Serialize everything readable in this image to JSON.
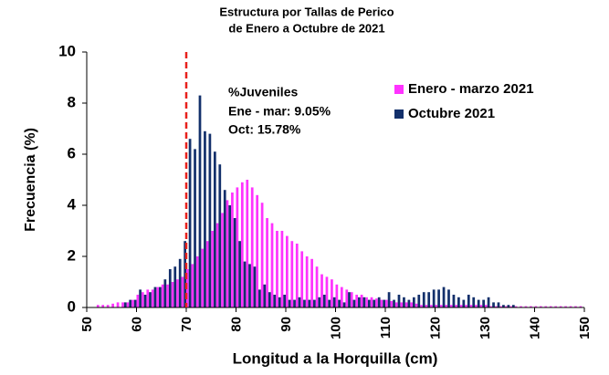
{
  "chart_data": {
    "type": "bar",
    "title_lines": [
      "Estructura por Tallas de Perico",
      "de Enero a Octubre de 2021"
    ],
    "x_label": "Longitud a la Horquilla (cm)",
    "y_label": "Frecuencia (%)",
    "annotations": [
      "%Juveniles",
      "Ene - mar: 9.05%",
      "Oct: 15.78%"
    ],
    "reference_line": {
      "value": 70,
      "color": "#e8211c"
    },
    "legend": "upper right",
    "x": [
      50,
      51,
      52,
      53,
      54,
      55,
      56,
      57,
      58,
      59,
      60,
      61,
      62,
      63,
      64,
      65,
      66,
      67,
      68,
      69,
      70,
      71,
      72,
      73,
      74,
      75,
      76,
      77,
      78,
      79,
      80,
      81,
      82,
      83,
      84,
      85,
      86,
      87,
      88,
      89,
      90,
      91,
      92,
      93,
      94,
      95,
      96,
      97,
      98,
      99,
      100,
      101,
      102,
      103,
      104,
      105,
      106,
      107,
      108,
      109,
      110,
      111,
      112,
      113,
      114,
      115,
      116,
      117,
      118,
      119,
      120,
      121,
      122,
      123,
      124,
      125,
      126,
      127,
      128,
      129,
      130,
      131,
      132,
      133,
      134,
      135,
      136,
      137,
      138,
      139,
      140,
      141,
      142,
      143,
      144,
      145,
      146,
      147,
      148,
      149
    ],
    "series": [
      {
        "name": "Enero - marzo 2021",
        "color": "#ff33ff",
        "values": [
          0,
          0,
          0.1,
          0.1,
          0.1,
          0.15,
          0.2,
          0.2,
          0.2,
          0.3,
          0.5,
          0.6,
          0.7,
          0.7,
          0.8,
          0.9,
          0.9,
          1.0,
          1.1,
          1.2,
          1.5,
          1.7,
          2.0,
          2.3,
          2.6,
          3.0,
          3.3,
          3.7,
          4.2,
          4.5,
          4.7,
          4.9,
          5.0,
          4.7,
          4.4,
          4.1,
          3.5,
          3.3,
          3.0,
          3.0,
          2.8,
          2.6,
          2.5,
          2.2,
          2.0,
          1.9,
          1.6,
          1.3,
          1.2,
          1.1,
          0.9,
          0.8,
          0.7,
          0.6,
          0.5,
          0.5,
          0.4,
          0.4,
          0.35,
          0.3,
          0.3,
          0.25,
          0.2,
          0.2,
          0.2,
          0.2,
          0.15,
          0.1,
          0.1,
          0.1,
          0.1,
          0.1,
          0.1,
          0.1,
          0.1,
          0.1,
          0.1,
          0.1,
          0.1,
          0.1,
          0.1,
          0.05,
          0.05,
          0.05,
          0.05,
          0.05,
          0.05,
          0.05,
          0.05,
          0.05,
          0.05,
          0.05,
          0.05,
          0.05,
          0.05,
          0.05,
          0.05,
          0.05,
          0.05,
          0.05
        ]
      },
      {
        "name": "Octubre 2021",
        "color": "#13306b",
        "values": [
          0,
          0,
          0,
          0,
          0,
          0,
          0,
          0.2,
          0.3,
          0.3,
          0.7,
          0.5,
          0.6,
          0.8,
          0.8,
          1.1,
          1.5,
          1.6,
          1.9,
          2.6,
          6.6,
          6.2,
          8.3,
          6.9,
          6.8,
          6.1,
          5.6,
          4.6,
          4.0,
          3.5,
          2.6,
          1.8,
          1.7,
          1.6,
          0.7,
          0.9,
          0.6,
          0.5,
          0.4,
          0.5,
          0.3,
          0.3,
          0.4,
          0.3,
          0.3,
          0.3,
          0.4,
          0.5,
          0.3,
          0.4,
          0.3,
          0.2,
          0.6,
          0.3,
          0.4,
          0.4,
          0.3,
          0.3,
          0.4,
          0.3,
          0.6,
          0.3,
          0.5,
          0.4,
          0.3,
          0.4,
          0.5,
          0.6,
          0.6,
          0.7,
          0.7,
          0.8,
          0.7,
          0.5,
          0.4,
          0.3,
          0.5,
          0.4,
          0.3,
          0.3,
          0.4,
          0.2,
          0.2,
          0.1,
          0.1,
          0.1,
          0,
          0,
          0,
          0,
          0,
          0,
          0,
          0,
          0,
          0,
          0,
          0,
          0,
          0
        ]
      }
    ],
    "xlim": [
      50,
      150
    ],
    "xticks": [
      50,
      60,
      70,
      80,
      90,
      100,
      110,
      120,
      130,
      140,
      150
    ],
    "ylim": [
      0,
      10
    ],
    "yticks": [
      0,
      2,
      4,
      6,
      8,
      10
    ]
  }
}
